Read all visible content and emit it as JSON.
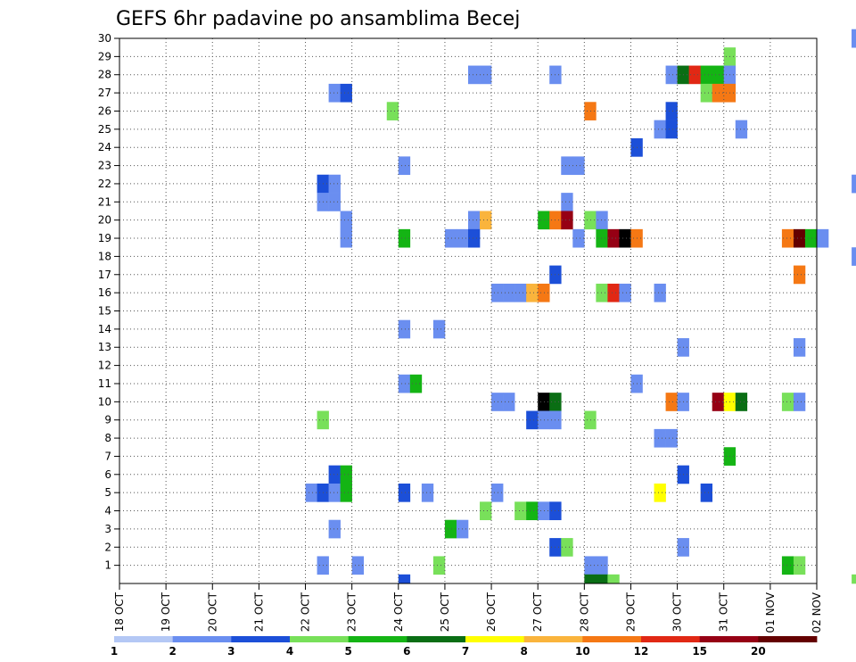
{
  "chart_data": {
    "type": "heatmap",
    "title": "GEFS 6hr padavine po ansamblima Becej",
    "xlabel": "",
    "ylabel": "",
    "x_tick_labels": [
      "18 OCT",
      "19 OCT",
      "20 OCT",
      "21 OCT",
      "22 OCT",
      "23 OCT",
      "24 OCT",
      "25 OCT",
      "26 OCT",
      "27 OCT",
      "28 OCT",
      "29 OCT",
      "30 OCT",
      "31 OCT",
      "01 NOV",
      "02 NOV"
    ],
    "x_range_days": [
      0,
      15
    ],
    "y_range": [
      0,
      30
    ],
    "y_tick_labels": [
      "1",
      "2",
      "3",
      "4",
      "5",
      "6",
      "7",
      "8",
      "9",
      "10",
      "11",
      "12",
      "13",
      "14",
      "15",
      "16",
      "17",
      "18",
      "19",
      "20",
      "21",
      "22",
      "23",
      "24",
      "25",
      "26",
      "27",
      "28",
      "29",
      "30"
    ],
    "grid": true,
    "step_hours": 6,
    "colorbar": {
      "labels": [
        "1",
        "2",
        "3",
        "4",
        "5",
        "6",
        "7",
        "8",
        "10",
        "12",
        "15",
        "20"
      ],
      "colors": [
        "#b4c8f5",
        "#6a8ef0",
        "#1c4fd8",
        "#78e05a",
        "#14b414",
        "#0a6e14",
        "#ffff00",
        "#fab43c",
        "#f57814",
        "#e12814",
        "#960014",
        "#640000"
      ]
    },
    "cells": [
      [
        15.75,
        30,
        1
      ],
      [
        15.75,
        30,
        1
      ],
      [
        13.0,
        29,
        3
      ],
      [
        7.5,
        28,
        1
      ],
      [
        7.75,
        28,
        1
      ],
      [
        9.25,
        28,
        1
      ],
      [
        11.75,
        28,
        1
      ],
      [
        12.0,
        28,
        5
      ],
      [
        12.25,
        28,
        9
      ],
      [
        12.5,
        28,
        4
      ],
      [
        12.75,
        28,
        4
      ],
      [
        13.0,
        28,
        1
      ],
      [
        4.5,
        27,
        1
      ],
      [
        4.75,
        27,
        2
      ],
      [
        12.5,
        27,
        3
      ],
      [
        12.75,
        27,
        8
      ],
      [
        13.0,
        27,
        8
      ],
      [
        5.75,
        26,
        3
      ],
      [
        10.0,
        26,
        8
      ],
      [
        11.75,
        26,
        2
      ],
      [
        11.5,
        25,
        1
      ],
      [
        11.75,
        25,
        2
      ],
      [
        13.25,
        25,
        1
      ],
      [
        11.0,
        24,
        2
      ],
      [
        6.0,
        23,
        1
      ],
      [
        9.5,
        23,
        1
      ],
      [
        9.75,
        23,
        1
      ],
      [
        4.25,
        22,
        2
      ],
      [
        4.5,
        22,
        1
      ],
      [
        15.75,
        22,
        1
      ],
      [
        4.25,
        21,
        1
      ],
      [
        4.5,
        21,
        1
      ],
      [
        9.5,
        21,
        1
      ],
      [
        4.75,
        20,
        1
      ],
      [
        7.5,
        20,
        1
      ],
      [
        7.75,
        20,
        7
      ],
      [
        9.0,
        20,
        4
      ],
      [
        9.25,
        20,
        8
      ],
      [
        9.5,
        20,
        10
      ],
      [
        10.0,
        20,
        3
      ],
      [
        10.25,
        20,
        1
      ],
      [
        4.75,
        19,
        1
      ],
      [
        6.0,
        19,
        4
      ],
      [
        7.0,
        19,
        1
      ],
      [
        7.25,
        19,
        1
      ],
      [
        7.5,
        19,
        2
      ],
      [
        9.75,
        19,
        1
      ],
      [
        10.25,
        19,
        4
      ],
      [
        10.5,
        19,
        10
      ],
      [
        10.75,
        19,
        12
      ],
      [
        11.0,
        19,
        8
      ],
      [
        14.25,
        19,
        8
      ],
      [
        14.5,
        19,
        11
      ],
      [
        14.75,
        19,
        4
      ],
      [
        15.0,
        19,
        1
      ],
      [
        15.75,
        18,
        1
      ],
      [
        9.25,
        17,
        2
      ],
      [
        14.5,
        17,
        8
      ],
      [
        8.0,
        16,
        1
      ],
      [
        8.25,
        16,
        1
      ],
      [
        8.5,
        16,
        1
      ],
      [
        8.75,
        16,
        7
      ],
      [
        9.0,
        16,
        8
      ],
      [
        10.25,
        16,
        3
      ],
      [
        10.5,
        16,
        9
      ],
      [
        10.75,
        16,
        1
      ],
      [
        11.5,
        16,
        1
      ],
      [
        6.0,
        14,
        1
      ],
      [
        6.75,
        14,
        1
      ],
      [
        12.0,
        13,
        1
      ],
      [
        14.5,
        13,
        1
      ],
      [
        6.0,
        11,
        1
      ],
      [
        6.25,
        11,
        4
      ],
      [
        11.0,
        11,
        1
      ],
      [
        8.0,
        10,
        1
      ],
      [
        8.25,
        10,
        1
      ],
      [
        9.0,
        10,
        12
      ],
      [
        9.25,
        10,
        5
      ],
      [
        11.75,
        10,
        8
      ],
      [
        12.0,
        10,
        1
      ],
      [
        12.75,
        10,
        10
      ],
      [
        13.0,
        10,
        6
      ],
      [
        13.25,
        10,
        5
      ],
      [
        14.25,
        10,
        3
      ],
      [
        14.5,
        10,
        1
      ],
      [
        4.25,
        9,
        3
      ],
      [
        8.75,
        9,
        2
      ],
      [
        9.0,
        9,
        1
      ],
      [
        9.25,
        9,
        1
      ],
      [
        10.0,
        9,
        3
      ],
      [
        11.5,
        8,
        1
      ],
      [
        11.75,
        8,
        1
      ],
      [
        13.0,
        7,
        4
      ],
      [
        4.5,
        6,
        2
      ],
      [
        4.75,
        6,
        4
      ],
      [
        12.0,
        6,
        2
      ],
      [
        4.0,
        5,
        1
      ],
      [
        4.25,
        5,
        2
      ],
      [
        4.5,
        5,
        1
      ],
      [
        4.75,
        5,
        4
      ],
      [
        6.0,
        5,
        2
      ],
      [
        6.5,
        5,
        1
      ],
      [
        8.0,
        5,
        1
      ],
      [
        11.5,
        5,
        6
      ],
      [
        12.5,
        5,
        2
      ],
      [
        7.75,
        4,
        3
      ],
      [
        8.5,
        4,
        3
      ],
      [
        8.75,
        4,
        4
      ],
      [
        9.0,
        4,
        1
      ],
      [
        9.25,
        4,
        2
      ],
      [
        4.5,
        3,
        1
      ],
      [
        7.0,
        3,
        4
      ],
      [
        7.25,
        3,
        1
      ],
      [
        9.25,
        2,
        2
      ],
      [
        9.5,
        2,
        3
      ],
      [
        12.0,
        2,
        1
      ],
      [
        4.25,
        1,
        1
      ],
      [
        5.0,
        1,
        1
      ],
      [
        6.75,
        1,
        3
      ],
      [
        10.0,
        1,
        1
      ],
      [
        10.25,
        1,
        1
      ],
      [
        14.25,
        1,
        4
      ],
      [
        14.5,
        1,
        3
      ],
      [
        6.0,
        0,
        2
      ],
      [
        10.0,
        0,
        5
      ],
      [
        10.25,
        0,
        5
      ],
      [
        10.5,
        0,
        3
      ],
      [
        15.75,
        0,
        3
      ]
    ]
  }
}
